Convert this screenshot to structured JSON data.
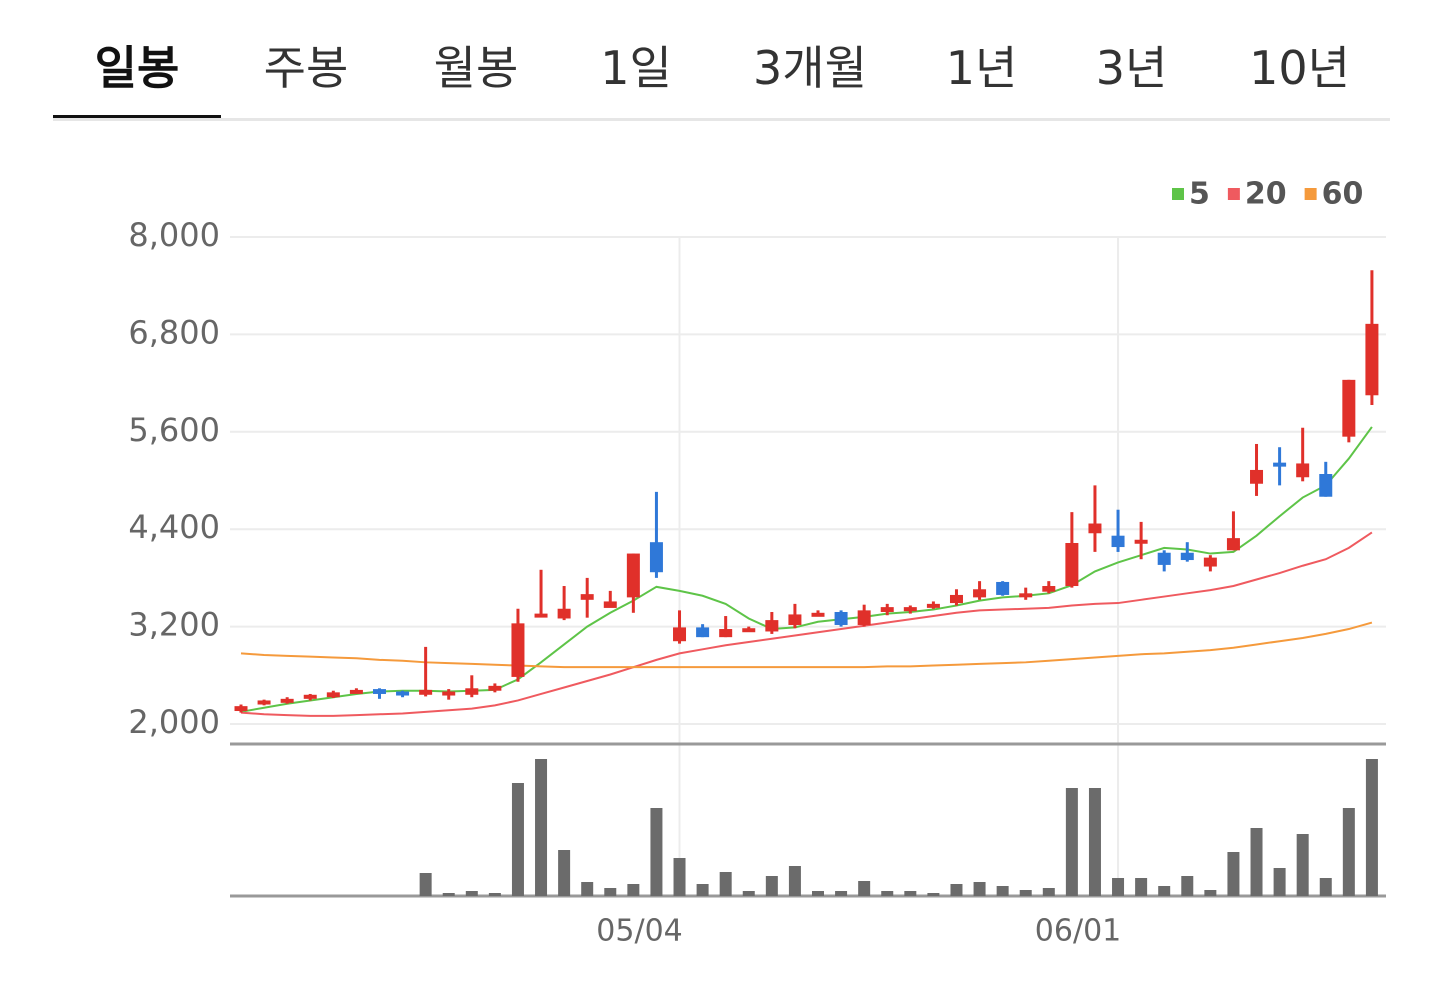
{
  "tabs": [
    "일봉",
    "주봉",
    "월봉",
    "1일",
    "3개월",
    "1년",
    "3년",
    "10년"
  ],
  "chart_data": {
    "type": "candlestick",
    "categories": [
      null,
      null,
      null,
      null,
      null,
      null,
      null,
      null,
      null,
      null,
      null,
      null,
      null,
      null,
      null,
      null,
      null,
      null,
      null,
      "05/04",
      null,
      null,
      null,
      null,
      null,
      null,
      null,
      null,
      null,
      null,
      null,
      null,
      null,
      null,
      null,
      null,
      null,
      null,
      "06/01",
      null,
      null,
      null,
      null,
      null,
      null,
      null,
      null,
      null,
      null,
      null
    ],
    "open": [
      2160,
      2240,
      2270,
      2310,
      2330,
      2390,
      2430,
      2400,
      2360,
      2380,
      2360,
      2410,
      2580,
      3320,
      3300,
      3530,
      3430,
      3560,
      4240,
      3020,
      3190,
      3070,
      3150,
      3140,
      3220,
      3340,
      3380,
      3220,
      3380,
      3390,
      3450,
      3490,
      3560,
      3750,
      3580,
      3630,
      3700,
      4350,
      4320,
      4240,
      4110,
      4110,
      3940,
      4140,
      4960,
      5220,
      5040,
      5080,
      5540,
      6050
    ],
    "high": [
      2240,
      2300,
      2330,
      2370,
      2410,
      2440,
      2440,
      2410,
      2950,
      2430,
      2600,
      2500,
      3420,
      3900,
      3700,
      3800,
      3640,
      4100,
      4860,
      3400,
      3230,
      3330,
      3200,
      3380,
      3480,
      3400,
      3400,
      3470,
      3480,
      3460,
      3510,
      3660,
      3760,
      3760,
      3680,
      3760,
      4610,
      4940,
      4640,
      4490,
      4140,
      4240,
      4080,
      4620,
      5450,
      5410,
      5650,
      5230,
      6240,
      7590
    ],
    "low": [
      2140,
      2230,
      2250,
      2290,
      2320,
      2380,
      2310,
      2330,
      2340,
      2300,
      2330,
      2390,
      2520,
      3320,
      3280,
      3310,
      3440,
      3370,
      3800,
      2990,
      3070,
      3070,
      3140,
      3110,
      3180,
      3330,
      3200,
      3200,
      3340,
      3360,
      3420,
      3460,
      3530,
      3580,
      3530,
      3610,
      3680,
      4120,
      4120,
      4030,
      3880,
      4000,
      3880,
      4140,
      4810,
      4940,
      4990,
      4800,
      5470,
      5930
    ],
    "close": [
      2220,
      2290,
      2310,
      2360,
      2390,
      2420,
      2370,
      2360,
      2420,
      2400,
      2440,
      2470,
      3240,
      3360,
      3420,
      3600,
      3510,
      4100,
      3870,
      3190,
      3070,
      3170,
      3180,
      3280,
      3350,
      3370,
      3220,
      3400,
      3440,
      3440,
      3480,
      3590,
      3660,
      3590,
      3610,
      3700,
      4230,
      4470,
      4180,
      4270,
      3960,
      4020,
      4050,
      4290,
      5130,
      5180,
      5210,
      4800,
      6240,
      6930
    ],
    "up_color": "#e0302a",
    "down_color": "#2f78d8",
    "series": [
      {
        "name": "5",
        "color": "#5ec448",
        "values": [
          2150,
          2200,
          2250,
          2290,
          2330,
          2370,
          2400,
          2410,
          2410,
          2400,
          2410,
          2420,
          2550,
          2760,
          2980,
          3200,
          3370,
          3520,
          3690,
          3640,
          3580,
          3480,
          3300,
          3170,
          3190,
          3260,
          3290,
          3320,
          3360,
          3380,
          3410,
          3460,
          3520,
          3560,
          3580,
          3610,
          3710,
          3880,
          3990,
          4080,
          4170,
          4150,
          4100,
          4120,
          4320,
          4560,
          4790,
          4940,
          5270,
          5660
        ]
      },
      {
        "name": "20",
        "color": "#ef5a5f",
        "values": [
          2140,
          2120,
          2110,
          2100,
          2100,
          2110,
          2120,
          2130,
          2150,
          2170,
          2190,
          2230,
          2290,
          2370,
          2450,
          2530,
          2610,
          2700,
          2790,
          2870,
          2920,
          2970,
          3010,
          3050,
          3090,
          3130,
          3170,
          3210,
          3250,
          3290,
          3330,
          3370,
          3400,
          3410,
          3420,
          3430,
          3460,
          3480,
          3490,
          3530,
          3570,
          3610,
          3650,
          3700,
          3780,
          3860,
          3950,
          4030,
          4170,
          4360
        ]
      },
      {
        "name": "60",
        "color": "#f59a3c",
        "values": [
          2870,
          2850,
          2840,
          2830,
          2820,
          2810,
          2790,
          2780,
          2760,
          2750,
          2740,
          2730,
          2720,
          2710,
          2700,
          2700,
          2700,
          2700,
          2700,
          2700,
          2700,
          2700,
          2700,
          2700,
          2700,
          2700,
          2700,
          2700,
          2710,
          2710,
          2720,
          2730,
          2740,
          2750,
          2760,
          2780,
          2800,
          2820,
          2840,
          2860,
          2870,
          2890,
          2910,
          2940,
          2980,
          3020,
          3060,
          3110,
          3170,
          3250
        ]
      }
    ],
    "volume": {
      "color": "#6b6b6b",
      "values": [
        0,
        0,
        0,
        0,
        0,
        0,
        0,
        0,
        23,
        3,
        5,
        3,
        113,
        137,
        46,
        14,
        8,
        12,
        88,
        38,
        12,
        24,
        5,
        20,
        30,
        5,
        5,
        15,
        5,
        5,
        3,
        12,
        14,
        10,
        6,
        8,
        108,
        108,
        18,
        18,
        10,
        20,
        6,
        44,
        68,
        28,
        62,
        18,
        88,
        137
      ]
    },
    "ylim": [
      2000,
      8000
    ],
    "yticks": [
      {
        "value": 2000,
        "label": "2,000"
      },
      {
        "value": 3200,
        "label": "3,200"
      },
      {
        "value": 4400,
        "label": "4,400"
      },
      {
        "value": 5600,
        "label": "5,600"
      },
      {
        "value": 6800,
        "label": "6,800"
      },
      {
        "value": 8000,
        "label": "8,000"
      }
    ],
    "grid": true,
    "legend": "top-right"
  }
}
